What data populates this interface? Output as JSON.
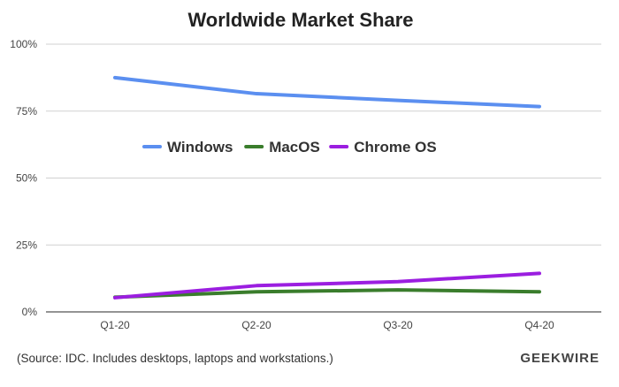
{
  "chart_data": {
    "type": "line",
    "title": "Worldwide Market Share",
    "xlabel": "",
    "ylabel": "",
    "categories": [
      "Q1-20",
      "Q2-20",
      "Q3-20",
      "Q4-20"
    ],
    "ylim": [
      0,
      100
    ],
    "yticks": [
      0,
      25,
      50,
      75,
      100
    ],
    "ytick_labels": [
      "0%",
      "25%",
      "50%",
      "75%",
      "100%"
    ],
    "grid": true,
    "legend_position": "middle",
    "series": [
      {
        "name": "Windows",
        "color": "#5b8ff0",
        "values": [
          87.5,
          81.5,
          79,
          76.7
        ]
      },
      {
        "name": "MacOS",
        "color": "#3a7d2c",
        "values": [
          5.5,
          7.5,
          8.2,
          7.5
        ]
      },
      {
        "name": "Chrome OS",
        "color": "#9b1ee0",
        "values": [
          5.3,
          9.8,
          11.3,
          14.4
        ]
      }
    ]
  },
  "footer": {
    "source": "(Source: IDC. Includes desktops, laptops and workstations.)",
    "brand": "GEEKWIRE"
  }
}
